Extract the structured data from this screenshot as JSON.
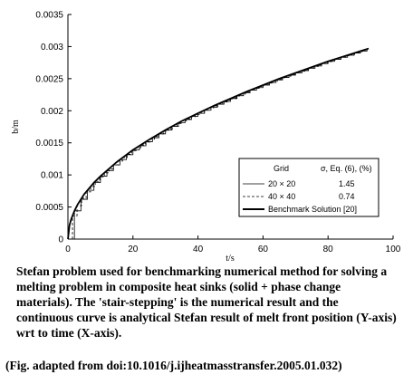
{
  "chart_data": {
    "type": "line",
    "xlabel": "t/s",
    "ylabel": "b/m",
    "xlim": [
      0,
      100
    ],
    "ylim": [
      0,
      0.0035
    ],
    "x_ticks": [
      "0",
      "20",
      "40",
      "60",
      "80",
      "100"
    ],
    "y_ticks": [
      "0",
      "0.0005",
      "0.001",
      "0.0015",
      "0.002",
      "0.0025",
      "0.003",
      "0.0035"
    ],
    "grid": false,
    "legend_position": "bottom-right",
    "legend": {
      "header": [
        "Grid",
        "σ, Eq. (6), (%)"
      ],
      "entries": [
        {
          "name": "20 × 20",
          "value": "1.45",
          "style": "thin-solid"
        },
        {
          "name": "40 × 40",
          "value": "0.74",
          "style": "dashed"
        },
        {
          "name": "Benchmark Solution [20]",
          "value": "",
          "style": "thick-solid"
        }
      ]
    },
    "series": [
      {
        "name": "Benchmark Solution [20]",
        "style": "thick-solid",
        "x": [
          0,
          0.5,
          1,
          2,
          3,
          5,
          8,
          10,
          15,
          20,
          25,
          30,
          35,
          40,
          45,
          50,
          55,
          60,
          65,
          70,
          75,
          80,
          85,
          90,
          92.5
        ],
        "y": [
          0,
          0.00022,
          0.00031,
          0.00044,
          0.00054,
          0.0007,
          0.00088,
          0.00098,
          0.0012,
          0.00139,
          0.00155,
          0.0017,
          0.00184,
          0.00196,
          0.00208,
          0.00219,
          0.0023,
          0.0024,
          0.0025,
          0.00259,
          0.00268,
          0.00277,
          0.00285,
          0.00293,
          0.00297
        ]
      },
      {
        "name": "20 × 20",
        "style": "thin-solid",
        "x": [
          0,
          0.5,
          1,
          2,
          3,
          5,
          8,
          10,
          15,
          20,
          25,
          30,
          35,
          40,
          45,
          50,
          55,
          60,
          65,
          70,
          75,
          80,
          85,
          90,
          92.5
        ],
        "y": [
          0,
          0.00022,
          0.00031,
          0.00044,
          0.00054,
          0.0007,
          0.00088,
          0.00098,
          0.0012,
          0.00139,
          0.00155,
          0.0017,
          0.00184,
          0.00196,
          0.00208,
          0.00219,
          0.0023,
          0.0024,
          0.0025,
          0.00259,
          0.00268,
          0.00277,
          0.00285,
          0.00293,
          0.00297
        ]
      },
      {
        "name": "40 × 40",
        "style": "dashed",
        "x": [
          0,
          0.5,
          1,
          2,
          3,
          5,
          8,
          10,
          15,
          20,
          25,
          30,
          35,
          40,
          45,
          50,
          55,
          60,
          65,
          70,
          75,
          80,
          85,
          90,
          92.5
        ],
        "y": [
          0,
          0.00022,
          0.00031,
          0.00044,
          0.00054,
          0.0007,
          0.00088,
          0.00098,
          0.0012,
          0.00139,
          0.00155,
          0.0017,
          0.00184,
          0.00196,
          0.00208,
          0.00219,
          0.0023,
          0.0024,
          0.0025,
          0.00259,
          0.00268,
          0.00277,
          0.00285,
          0.00293,
          0.00294
        ]
      }
    ]
  },
  "caption": "Stefan problem used for benchmarking numerical method for solving a melting problem in composite heat sinks (solid + phase change materials). The 'stair-stepping' is the numerical result and the continuous curve is analytical Stefan result of melt front position (Y-axis) wrt to time (X-axis).",
  "citation": "(Fig. adapted from doi:10.1016/j.ijheatmasstransfer.2005.01.032)"
}
